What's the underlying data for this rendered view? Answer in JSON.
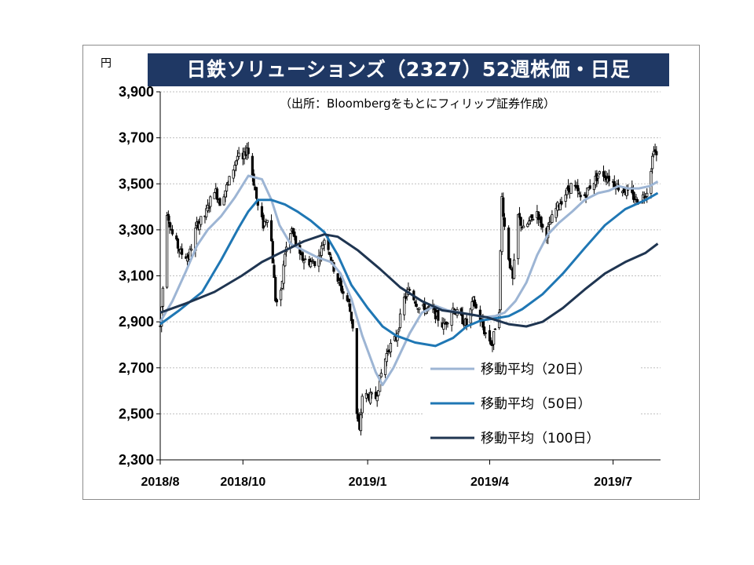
{
  "chart_data": {
    "type": "candlestick",
    "title": "日鉄ソリューションズ（2327）52週株価・日足",
    "source": "（出所：Bloombergをもとにフィリップ証券作成）",
    "unit_label": "円",
    "ylim": [
      2300,
      3900
    ],
    "y_ticks": [
      2300,
      2500,
      2700,
      2900,
      3100,
      3300,
      3500,
      3700,
      3900
    ],
    "y_tick_labels": [
      "2,300",
      "2,500",
      "2,700",
      "2,900",
      "3,100",
      "3,300",
      "3,500",
      "3,700",
      "3,900"
    ],
    "x_range": [
      "2018-08-01",
      "2019-08-05"
    ],
    "x_ticks": [
      "2018-08-01",
      "2018-10-01",
      "2019-01-01",
      "2019-04-01",
      "2019-07-01"
    ],
    "x_tick_labels": [
      "2018/8",
      "2018/10",
      "2019/1",
      "2019/4",
      "2019/7"
    ],
    "grid": true,
    "legend_position": "center-right",
    "price_anchors": [
      [
        "2018-08-01",
        2880
      ],
      [
        "2018-08-03",
        3050
      ],
      [
        "2018-08-06",
        3380
      ],
      [
        "2018-08-10",
        3280
      ],
      [
        "2018-08-16",
        3200
      ],
      [
        "2018-08-22",
        3180
      ],
      [
        "2018-08-28",
        3320
      ],
      [
        "2018-09-03",
        3360
      ],
      [
        "2018-09-10",
        3480
      ],
      [
        "2018-09-14",
        3420
      ],
      [
        "2018-09-20",
        3500
      ],
      [
        "2018-09-27",
        3620
      ],
      [
        "2018-10-01",
        3600
      ],
      [
        "2018-10-04",
        3660
      ],
      [
        "2018-10-07",
        3580
      ],
      [
        "2018-10-12",
        3400
      ],
      [
        "2018-10-16",
        3320
      ],
      [
        "2018-10-19",
        3360
      ],
      [
        "2018-10-22",
        3250
      ],
      [
        "2018-10-25",
        3000
      ],
      [
        "2018-10-28",
        2960
      ],
      [
        "2018-11-01",
        3200
      ],
      [
        "2018-11-06",
        3300
      ],
      [
        "2018-11-12",
        3180
      ],
      [
        "2018-11-19",
        3160
      ],
      [
        "2018-11-25",
        3160
      ],
      [
        "2018-12-01",
        3280
      ],
      [
        "2018-12-06",
        3150
      ],
      [
        "2018-12-12",
        3050
      ],
      [
        "2018-12-18",
        2980
      ],
      [
        "2018-12-21",
        2880
      ],
      [
        "2018-12-24",
        2500
      ],
      [
        "2018-12-26",
        2420
      ],
      [
        "2018-12-28",
        2580
      ],
      [
        "2019-01-07",
        2570
      ],
      [
        "2019-01-12",
        2700
      ],
      [
        "2019-01-16",
        2780
      ],
      [
        "2019-01-22",
        2830
      ],
      [
        "2019-01-28",
        3000
      ],
      [
        "2019-02-01",
        3040
      ],
      [
        "2019-02-08",
        2960
      ],
      [
        "2019-02-18",
        2950
      ],
      [
        "2019-02-26",
        2880
      ],
      [
        "2019-03-05",
        2960
      ],
      [
        "2019-03-10",
        2920
      ],
      [
        "2019-03-15",
        2890
      ],
      [
        "2019-03-20",
        2990
      ],
      [
        "2019-03-28",
        2860
      ],
      [
        "2019-04-03",
        2800
      ],
      [
        "2019-04-05",
        2880
      ],
      [
        "2019-04-08",
        2960
      ],
      [
        "2019-04-10",
        3440
      ],
      [
        "2019-04-13",
        3250
      ],
      [
        "2019-04-18",
        3080
      ],
      [
        "2019-04-22",
        3360
      ],
      [
        "2019-04-26",
        3300
      ],
      [
        "2019-05-06",
        3380
      ],
      [
        "2019-05-12",
        3270
      ],
      [
        "2019-05-19",
        3380
      ],
      [
        "2019-05-25",
        3440
      ],
      [
        "2019-06-01",
        3500
      ],
      [
        "2019-06-08",
        3430
      ],
      [
        "2019-06-15",
        3500
      ],
      [
        "2019-06-22",
        3550
      ],
      [
        "2019-06-29",
        3520
      ],
      [
        "2019-07-06",
        3480
      ],
      [
        "2019-07-13",
        3460
      ],
      [
        "2019-07-20",
        3420
      ],
      [
        "2019-07-27",
        3480
      ],
      [
        "2019-07-31",
        3660
      ],
      [
        "2019-08-02",
        3620
      ]
    ],
    "series": [
      {
        "name": "移動平均（20日）",
        "color": "#9db5d4",
        "points": [
          [
            "2018-08-01",
            2900
          ],
          [
            "2018-08-10",
            2990
          ],
          [
            "2018-08-20",
            3120
          ],
          [
            "2018-08-28",
            3230
          ],
          [
            "2018-09-05",
            3300
          ],
          [
            "2018-09-15",
            3360
          ],
          [
            "2018-09-25",
            3440
          ],
          [
            "2018-10-05",
            3535
          ],
          [
            "2018-10-15",
            3520
          ],
          [
            "2018-10-22",
            3430
          ],
          [
            "2018-10-28",
            3320
          ],
          [
            "2018-11-05",
            3240
          ],
          [
            "2018-11-15",
            3210
          ],
          [
            "2018-11-25",
            3180
          ],
          [
            "2018-12-05",
            3160
          ],
          [
            "2018-12-12",
            3110
          ],
          [
            "2018-12-20",
            3000
          ],
          [
            "2018-12-28",
            2840
          ],
          [
            "2019-01-07",
            2680
          ],
          [
            "2019-01-12",
            2625
          ],
          [
            "2019-01-20",
            2700
          ],
          [
            "2019-02-01",
            2850
          ],
          [
            "2019-02-10",
            2940
          ],
          [
            "2019-02-20",
            2970
          ],
          [
            "2019-03-01",
            2950
          ],
          [
            "2019-03-10",
            2940
          ],
          [
            "2019-03-20",
            2930
          ],
          [
            "2019-03-28",
            2920
          ],
          [
            "2019-04-05",
            2925
          ],
          [
            "2019-04-12",
            2940
          ],
          [
            "2019-04-20",
            2990
          ],
          [
            "2019-04-28",
            3070
          ],
          [
            "2019-05-06",
            3190
          ],
          [
            "2019-05-14",
            3280
          ],
          [
            "2019-05-22",
            3330
          ],
          [
            "2019-06-01",
            3380
          ],
          [
            "2019-06-10",
            3430
          ],
          [
            "2019-06-20",
            3460
          ],
          [
            "2019-06-28",
            3470
          ],
          [
            "2019-07-05",
            3490
          ],
          [
            "2019-07-12",
            3480
          ],
          [
            "2019-07-20",
            3480
          ],
          [
            "2019-07-28",
            3490
          ],
          [
            "2019-08-03",
            3510
          ]
        ]
      },
      {
        "name": "移動平均（50日）",
        "color": "#1f77b4",
        "points": [
          [
            "2018-08-01",
            2890
          ],
          [
            "2018-08-15",
            2950
          ],
          [
            "2018-09-01",
            3030
          ],
          [
            "2018-09-15",
            3170
          ],
          [
            "2018-09-28",
            3310
          ],
          [
            "2018-10-05",
            3380
          ],
          [
            "2018-10-12",
            3430
          ],
          [
            "2018-10-22",
            3430
          ],
          [
            "2018-11-01",
            3410
          ],
          [
            "2018-11-10",
            3380
          ],
          [
            "2018-11-20",
            3340
          ],
          [
            "2018-11-30",
            3290
          ],
          [
            "2018-12-10",
            3190
          ],
          [
            "2018-12-20",
            3060
          ],
          [
            "2019-01-01",
            2960
          ],
          [
            "2019-01-12",
            2880
          ],
          [
            "2019-01-22",
            2840
          ],
          [
            "2019-02-05",
            2810
          ],
          [
            "2019-02-20",
            2795
          ],
          [
            "2019-03-05",
            2830
          ],
          [
            "2019-03-15",
            2880
          ],
          [
            "2019-03-25",
            2905
          ],
          [
            "2019-04-05",
            2915
          ],
          [
            "2019-04-15",
            2925
          ],
          [
            "2019-04-25",
            2955
          ],
          [
            "2019-05-10",
            3020
          ],
          [
            "2019-05-25",
            3110
          ],
          [
            "2019-06-10",
            3220
          ],
          [
            "2019-06-25",
            3320
          ],
          [
            "2019-07-10",
            3390
          ],
          [
            "2019-07-25",
            3430
          ],
          [
            "2019-08-03",
            3460
          ]
        ]
      },
      {
        "name": "移動平均（100日）",
        "color": "#1f3551",
        "points": [
          [
            "2018-08-01",
            2940
          ],
          [
            "2018-08-20",
            2980
          ],
          [
            "2018-09-10",
            3030
          ],
          [
            "2018-09-30",
            3100
          ],
          [
            "2018-10-15",
            3160
          ],
          [
            "2018-11-01",
            3210
          ],
          [
            "2018-11-15",
            3250
          ],
          [
            "2018-11-30",
            3280
          ],
          [
            "2018-12-10",
            3270
          ],
          [
            "2018-12-25",
            3210
          ],
          [
            "2019-01-10",
            3130
          ],
          [
            "2019-01-25",
            3050
          ],
          [
            "2019-02-10",
            2990
          ],
          [
            "2019-02-25",
            2950
          ],
          [
            "2019-03-15",
            2935
          ],
          [
            "2019-03-30",
            2920
          ],
          [
            "2019-04-15",
            2890
          ],
          [
            "2019-04-28",
            2880
          ],
          [
            "2019-05-10",
            2900
          ],
          [
            "2019-05-25",
            2960
          ],
          [
            "2019-06-10",
            3040
          ],
          [
            "2019-06-25",
            3110
          ],
          [
            "2019-07-10",
            3160
          ],
          [
            "2019-07-25",
            3200
          ],
          [
            "2019-08-03",
            3240
          ]
        ]
      }
    ]
  }
}
